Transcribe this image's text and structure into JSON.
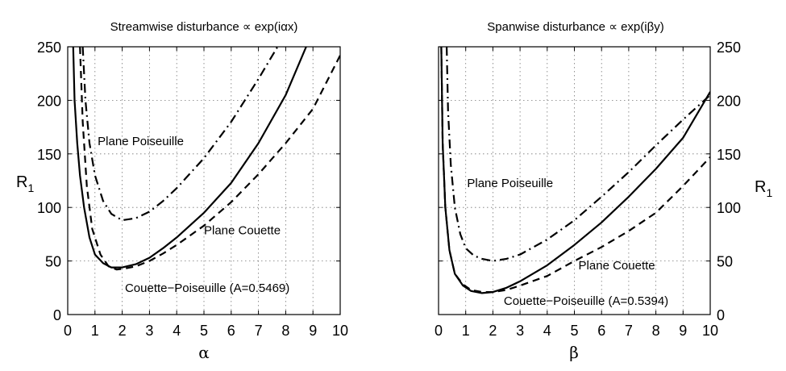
{
  "chart_data": [
    {
      "type": "line",
      "title": "Streamwise disturbance ∝ exp(iαx)",
      "xlabel": "α",
      "ylabel": "R",
      "ylabel_sub": "1",
      "xlim": [
        0,
        10
      ],
      "ylim": [
        0,
        250
      ],
      "xticks": [
        "0",
        "1",
        "2",
        "3",
        "4",
        "5",
        "6",
        "7",
        "8",
        "9",
        "10"
      ],
      "yticks": [
        "0",
        "50",
        "100",
        "150",
        "200",
        "250"
      ],
      "grid": true,
      "yaxis_side": "left",
      "series": [
        {
          "name": "Plane Poiseuille",
          "style": "dashdot",
          "x": [
            0.55,
            0.65,
            0.8,
            1.0,
            1.3,
            1.6,
            2.0,
            2.5,
            3.0,
            3.5,
            4.0,
            5.0,
            6.0,
            7.0,
            7.7
          ],
          "y": [
            250,
            200,
            160,
            130,
            106,
            94,
            88,
            90,
            96,
            106,
            118,
            146,
            180,
            220,
            250
          ]
        },
        {
          "name": "Plane Couette",
          "style": "dashed",
          "x": [
            0.45,
            0.55,
            0.7,
            0.9,
            1.2,
            1.5,
            1.8,
            2.1,
            2.5,
            3.0,
            3.5,
            4.0,
            5.0,
            6.0,
            7.0,
            8.0,
            9.0,
            10.0
          ],
          "y": [
            250,
            180,
            120,
            80,
            56,
            45,
            42,
            43,
            45,
            50,
            57,
            65,
            83,
            105,
            131,
            160,
            192,
            242
          ]
        },
        {
          "name": "Couette−Poiseuille (A=0.5469)",
          "style": "solid",
          "x": [
            0.2,
            0.25,
            0.35,
            0.45,
            0.6,
            0.8,
            1.0,
            1.3,
            1.6,
            2.0,
            2.5,
            3.0,
            3.5,
            4.0,
            5.0,
            6.0,
            7.0,
            8.0,
            8.75
          ],
          "y": [
            250,
            200,
            160,
            130,
            100,
            72,
            56,
            48,
            44,
            44,
            47,
            53,
            62,
            72,
            95,
            123,
            160,
            205,
            250
          ]
        }
      ],
      "annotations": [
        {
          "text": "Plane Poiseuille",
          "x": 1.1,
          "y": 158
        },
        {
          "text": "Plane Couette",
          "x": 5.0,
          "y": 75
        },
        {
          "text": "Couette−Poiseuille (A=0.5469)",
          "x": 2.1,
          "y": 21
        }
      ]
    },
    {
      "type": "line",
      "title": "Spanwise disturbance ∝ exp(iβy)",
      "xlabel": "β",
      "ylabel": "R",
      "ylabel_sub": "1",
      "xlim": [
        0,
        10
      ],
      "ylim": [
        0,
        250
      ],
      "xticks": [
        "0",
        "1",
        "2",
        "3",
        "4",
        "5",
        "6",
        "7",
        "8",
        "9",
        "10"
      ],
      "yticks": [
        "0",
        "50",
        "100",
        "150",
        "200",
        "250"
      ],
      "grid": true,
      "yaxis_side": "right",
      "series": [
        {
          "name": "Plane Poiseuille",
          "style": "dashdot",
          "x": [
            0.3,
            0.35,
            0.45,
            0.6,
            0.8,
            1.0,
            1.3,
            1.6,
            2.0,
            2.5,
            3.0,
            4.0,
            5.0,
            6.0,
            7.0,
            8.0,
            9.0,
            10.0
          ],
          "y": [
            250,
            190,
            140,
            100,
            75,
            62,
            55,
            52,
            50,
            52,
            56,
            70,
            88,
            110,
            133,
            158,
            182,
            205
          ]
        },
        {
          "name": "Plane Couette",
          "style": "dashed",
          "x": [
            0.1,
            0.15,
            0.25,
            0.4,
            0.6,
            0.9,
            1.2,
            1.6,
            2.0,
            2.5,
            3.0,
            4.0,
            5.0,
            6.0,
            7.0,
            8.0,
            9.0,
            10.0
          ],
          "y": [
            250,
            160,
            100,
            60,
            38,
            28,
            23,
            21,
            21,
            23,
            27,
            36,
            50,
            63,
            78,
            95,
            120,
            147
          ]
        },
        {
          "name": "Couette−Poiseuille (A=0.5394)",
          "style": "solid",
          "x": [
            0.1,
            0.15,
            0.25,
            0.4,
            0.6,
            0.9,
            1.2,
            1.6,
            2.0,
            2.5,
            3.0,
            4.0,
            5.0,
            6.0,
            7.0,
            8.0,
            9.0,
            10.0
          ],
          "y": [
            250,
            160,
            100,
            60,
            38,
            27,
            22,
            20,
            21,
            25,
            31,
            46,
            65,
            86,
            110,
            136,
            165,
            208
          ]
        }
      ],
      "annotations": [
        {
          "text": "Plane Poiseuille",
          "x": 1.05,
          "y": 119
        },
        {
          "text": "Plane Couette",
          "x": 5.15,
          "y": 42
        },
        {
          "text": "Couette−Poiseuille (A=0.5394)",
          "x": 2.4,
          "y": 9
        }
      ]
    }
  ]
}
